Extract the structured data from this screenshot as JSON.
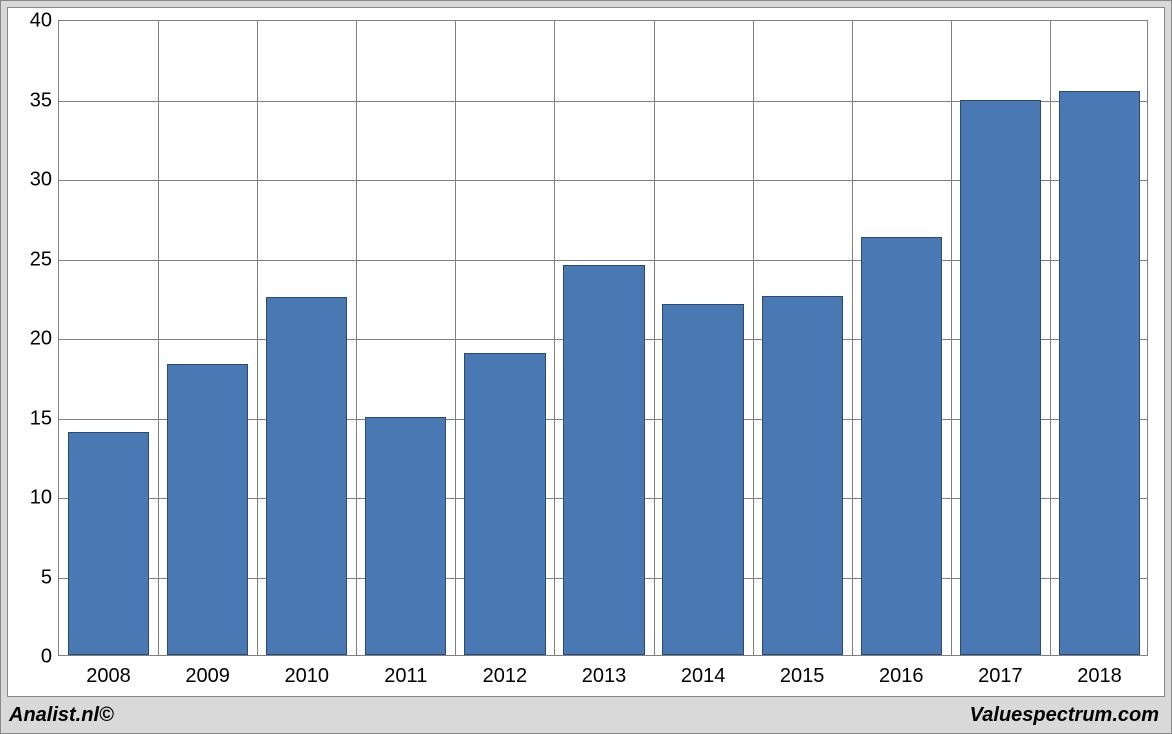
{
  "chart": {
    "type": "bar",
    "categories": [
      "2008",
      "2009",
      "2010",
      "2011",
      "2012",
      "2013",
      "2014",
      "2015",
      "2016",
      "2017",
      "2018"
    ],
    "values": [
      14.0,
      18.3,
      22.5,
      15.0,
      19.0,
      24.5,
      22.1,
      22.6,
      26.3,
      34.9,
      35.5
    ],
    "bar_color": "#4a78b2",
    "bar_border_color": "#2a4a70",
    "background_color": "#ffffff",
    "outer_background_color": "#d9d9d9",
    "grid_color": "#808080",
    "ymin": 0,
    "ymax": 40,
    "ytick_step": 5,
    "yticks": [
      0,
      5,
      10,
      15,
      20,
      25,
      30,
      35,
      40
    ],
    "bar_width_ratio": 0.82,
    "label_fontsize": 20,
    "label_color": "#000000",
    "footer_left": "Analist.nl©",
    "footer_right": "Valuespectrum.com"
  }
}
